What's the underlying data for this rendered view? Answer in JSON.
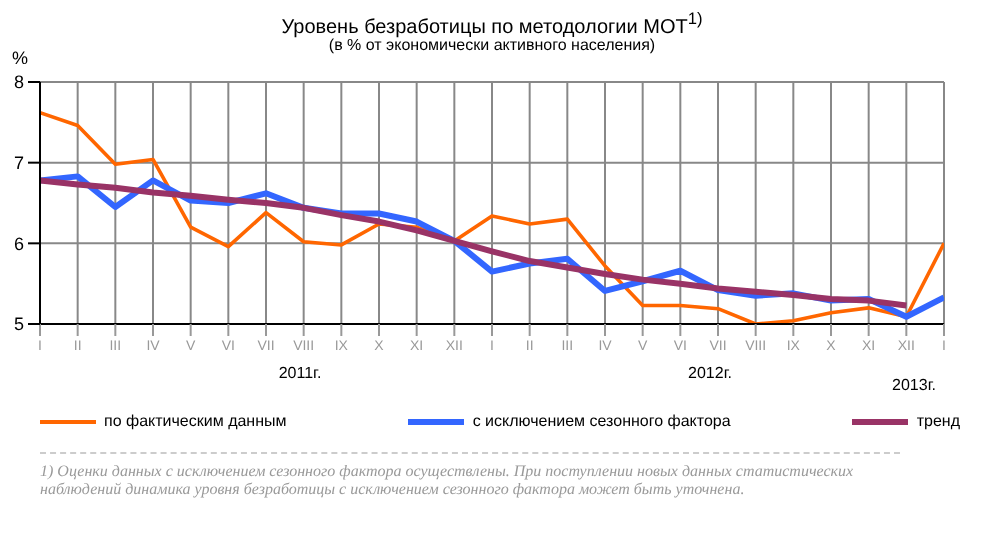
{
  "chart_data": {
    "type": "line",
    "title": "Уровень безработицы по методологии МОТ$^{1)}$",
    "subtitle": "(в % от экономически активного населения)",
    "ylabel": "%",
    "categories": [
      "I",
      "II",
      "III",
      "IV",
      "V",
      "VI",
      "VII",
      "VIII",
      "IX",
      "X",
      "XI",
      "XII",
      "I",
      "II",
      "III",
      "IV",
      "V",
      "VI",
      "VII",
      "VIII",
      "IX",
      "X",
      "XI",
      "XII",
      "I"
    ],
    "series": [
      {
        "name": "по фактическим данным",
        "color": "#ff6600",
        "values": [
          7.62,
          7.46,
          6.98,
          7.04,
          6.2,
          5.96,
          6.38,
          6.02,
          5.98,
          6.24,
          6.2,
          6.03,
          6.34,
          6.24,
          6.3,
          5.72,
          5.23,
          5.23,
          5.19,
          5.0,
          5.04,
          5.14,
          5.2,
          5.09,
          6.0
        ]
      },
      {
        "name": "с исключением сезонного фактора",
        "color": "#3366ff",
        "values": [
          6.78,
          6.83,
          6.45,
          6.78,
          6.53,
          6.5,
          6.62,
          6.44,
          6.37,
          6.37,
          6.27,
          6.03,
          5.65,
          5.75,
          5.81,
          5.41,
          5.53,
          5.66,
          5.42,
          5.35,
          5.38,
          5.29,
          5.31,
          5.09,
          5.33
        ]
      },
      {
        "name": "тренд",
        "color": "#993366",
        "values": [
          6.78,
          6.73,
          6.69,
          6.63,
          6.59,
          6.54,
          6.5,
          6.44,
          6.35,
          6.27,
          6.16,
          6.03,
          5.9,
          5.78,
          5.7,
          5.62,
          5.55,
          5.5,
          5.44,
          5.4,
          5.36,
          5.31,
          5.29,
          5.23,
          null
        ]
      }
    ],
    "ylim": [
      5,
      8
    ],
    "yticks": [
      5,
      6,
      7,
      8
    ],
    "grid": true,
    "legend": "bottom",
    "marker": "none",
    "line_style": "solid",
    "annotations": [
      "2011г.",
      "2012г.",
      "2013г.",
      "1) Оценки данных с исключением сезонного фактора осуществлены. При поступлении новых данных статистических наблюдений динамика уровня безработицы с исключением сезонного фактора может быть уточнена."
    ]
  }
}
